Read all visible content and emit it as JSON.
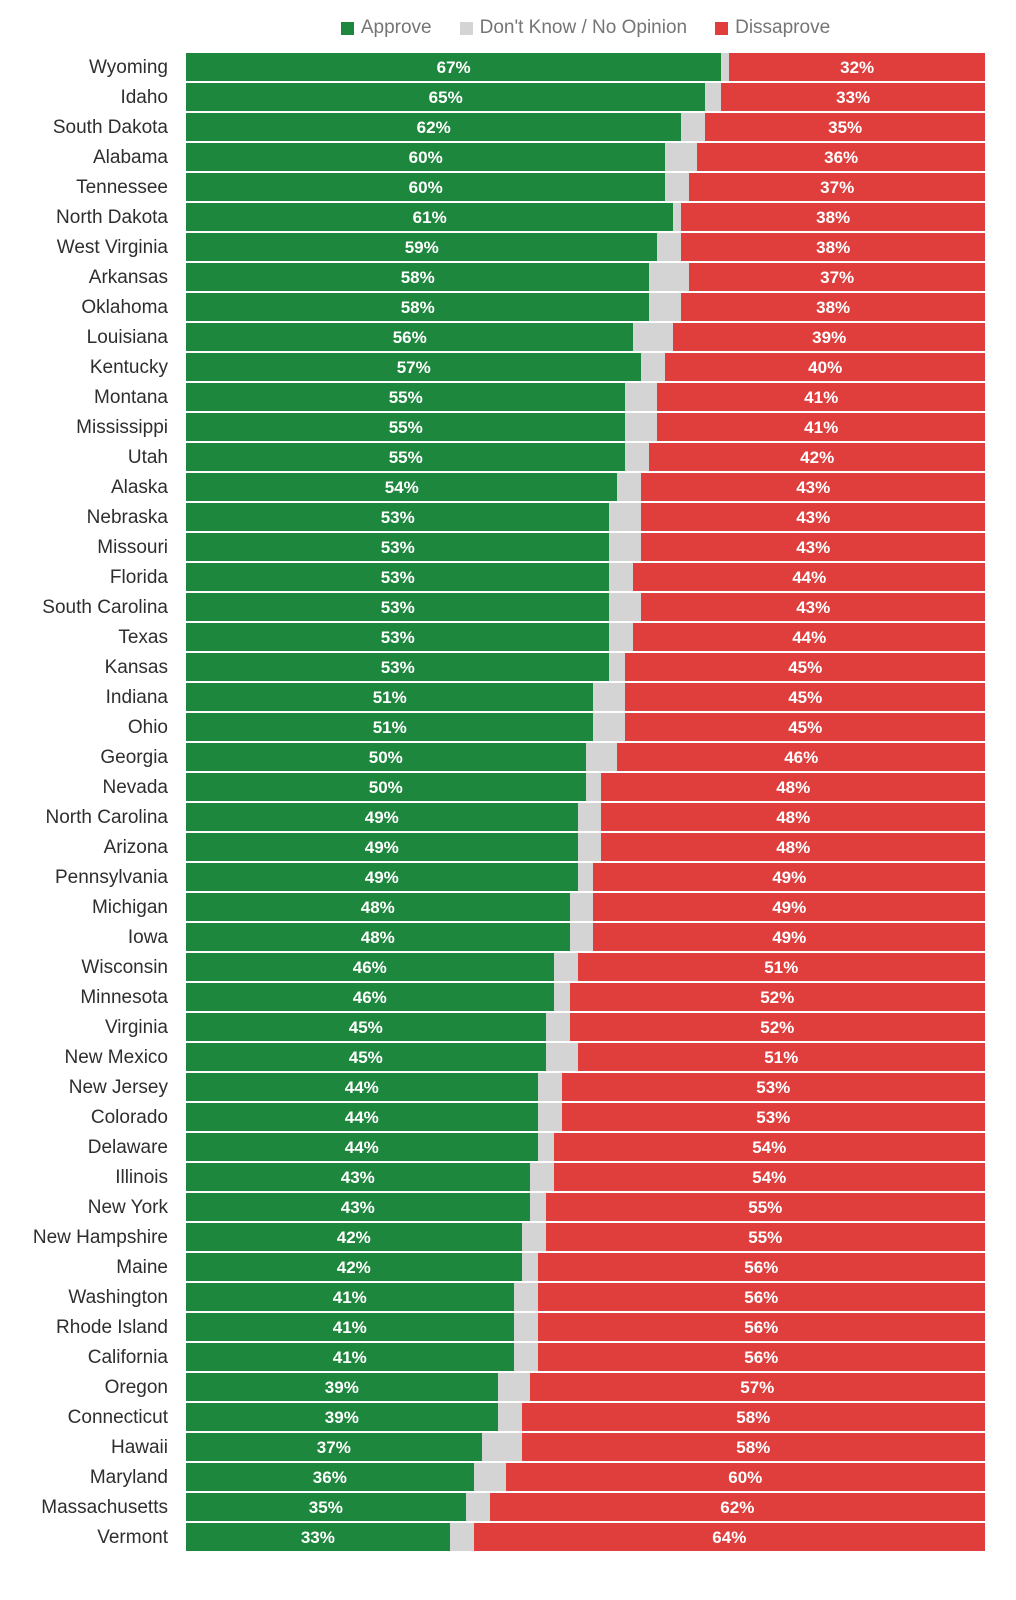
{
  "legend": {
    "items": [
      {
        "label": "Approve",
        "color": "#1d883d"
      },
      {
        "label": "Don't Know / No Opinion",
        "color": "#d4d4d4"
      },
      {
        "label": "Dissaprove",
        "color": "#e03d3d"
      }
    ]
  },
  "colors": {
    "approve": "#1d883d",
    "dont_know": "#d4d4d4",
    "disapprove": "#e03d3d",
    "label_text": "#2e2e2e",
    "legend_text": "#757575",
    "value_text": "#ffffff"
  },
  "chart_data": {
    "type": "bar",
    "orientation": "horizontal",
    "stacked": true,
    "unit": "percent",
    "xlim": [
      0,
      100
    ],
    "grid": false,
    "legend_position": "top",
    "value_labels": "shown inside Approve and Dissaprove segments as N%",
    "categories": [
      "Wyoming",
      "Idaho",
      "South Dakota",
      "Alabama",
      "Tennessee",
      "North Dakota",
      "West Virginia",
      "Arkansas",
      "Oklahoma",
      "Louisiana",
      "Kentucky",
      "Montana",
      "Mississippi",
      "Utah",
      "Alaska",
      "Nebraska",
      "Missouri",
      "Florida",
      "South Carolina",
      "Texas",
      "Kansas",
      "Indiana",
      "Ohio",
      "Georgia",
      "Nevada",
      "North Carolina",
      "Arizona",
      "Pennsylvania",
      "Michigan",
      "Iowa",
      "Wisconsin",
      "Minnesota",
      "Virginia",
      "New Mexico",
      "New Jersey",
      "Colorado",
      "Delaware",
      "Illinois",
      "New York",
      "New Hampshire",
      "Maine",
      "Washington",
      "Rhode Island",
      "California",
      "Oregon",
      "Connecticut",
      "Hawaii",
      "Maryland",
      "Massachusetts",
      "Vermont"
    ],
    "series": [
      {
        "name": "Approve",
        "color": "#1d883d",
        "values": [
          67,
          65,
          62,
          60,
          60,
          61,
          59,
          58,
          58,
          56,
          57,
          55,
          55,
          55,
          54,
          53,
          53,
          53,
          53,
          53,
          53,
          51,
          51,
          50,
          50,
          49,
          49,
          49,
          48,
          48,
          46,
          46,
          45,
          45,
          44,
          44,
          44,
          43,
          43,
          42,
          42,
          41,
          41,
          41,
          39,
          39,
          37,
          36,
          35,
          33
        ]
      },
      {
        "name": "Don't Know / No Opinion",
        "color": "#d4d4d4",
        "values": [
          1,
          2,
          3,
          4,
          3,
          1,
          3,
          5,
          4,
          5,
          3,
          4,
          4,
          3,
          3,
          4,
          4,
          3,
          4,
          3,
          2,
          4,
          4,
          4,
          2,
          3,
          3,
          2,
          3,
          3,
          3,
          2,
          3,
          4,
          3,
          3,
          2,
          3,
          2,
          3,
          2,
          3,
          3,
          3,
          4,
          3,
          5,
          4,
          3,
          3
        ]
      },
      {
        "name": "Dissaprove",
        "color": "#e03d3d",
        "values": [
          32,
          33,
          35,
          36,
          37,
          38,
          38,
          37,
          38,
          39,
          40,
          41,
          41,
          42,
          43,
          43,
          43,
          44,
          43,
          44,
          45,
          45,
          45,
          46,
          48,
          48,
          48,
          49,
          49,
          49,
          51,
          52,
          52,
          51,
          53,
          53,
          54,
          54,
          55,
          55,
          56,
          56,
          56,
          56,
          57,
          58,
          58,
          60,
          62,
          64
        ]
      }
    ]
  }
}
